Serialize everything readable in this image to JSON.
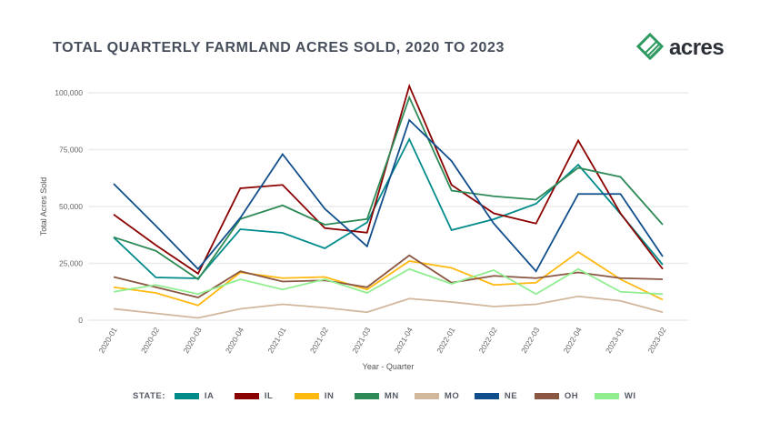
{
  "chart_data": {
    "type": "line",
    "title": "TOTAL QUARTERLY FARMLAND ACRES SOLD, 2020 TO 2023",
    "xlabel": "Year - Quarter",
    "ylabel": "Total Acres Sold",
    "ylim": [
      0,
      100000
    ],
    "yticks": [
      0,
      25000,
      50000,
      75000,
      100000
    ],
    "ytick_labels": [
      "0",
      "25,000",
      "50,000",
      "75,000",
      "100,000"
    ],
    "grid": true,
    "legend_title": "STATE:",
    "legend_position": "bottom",
    "categories": [
      "2020-01",
      "2020-02",
      "2020-03",
      "2020-04",
      "2021-01",
      "2021-02",
      "2021-03",
      "2021-04",
      "2022-01",
      "2022-02",
      "2022-03",
      "2022-04",
      "2023-01",
      "2023-02"
    ],
    "series": [
      {
        "name": "IA",
        "color": "#008b8b",
        "values": [
          36400,
          18800,
          18400,
          40000,
          38400,
          31600,
          43000,
          79600,
          39600,
          44400,
          51200,
          68400,
          46800,
          24400
        ]
      },
      {
        "name": "IL",
        "color": "#8b0000",
        "values": [
          46500,
          33000,
          20500,
          58000,
          59500,
          40500,
          38500,
          103000,
          59500,
          47000,
          42500,
          79000,
          47000,
          22500
        ]
      },
      {
        "name": "IN",
        "color": "#ffb90f",
        "values": [
          14500,
          12000,
          6500,
          21000,
          18500,
          19000,
          13500,
          26000,
          23000,
          15500,
          16500,
          30000,
          18000,
          9000
        ]
      },
      {
        "name": "MN",
        "color": "#2e8b57",
        "values": [
          36500,
          30500,
          18000,
          44500,
          50500,
          42000,
          44500,
          98000,
          57000,
          54500,
          53000,
          67000,
          63000,
          42000
        ]
      },
      {
        "name": "MO",
        "color": "#d2b79c",
        "values": [
          5000,
          3000,
          1000,
          5000,
          7000,
          5500,
          3500,
          9500,
          8000,
          6000,
          7000,
          10500,
          8500,
          3500
        ]
      },
      {
        "name": "NE",
        "color": "#104e8b",
        "values": [
          60000,
          41500,
          22500,
          45000,
          73000,
          49000,
          32500,
          88000,
          70000,
          42500,
          21500,
          55500,
          55500,
          28000
        ]
      },
      {
        "name": "OH",
        "color": "#8b5742",
        "values": [
          19000,
          14500,
          10000,
          21500,
          17000,
          17500,
          14500,
          28500,
          16500,
          19500,
          18500,
          21000,
          18500,
          18000
        ]
      },
      {
        "name": "WI",
        "color": "#90ee90",
        "values": [
          12500,
          15500,
          11500,
          18000,
          13500,
          18000,
          12000,
          22500,
          16000,
          22000,
          11500,
          22500,
          12500,
          11500
        ]
      }
    ]
  },
  "logo": {
    "text": "acres",
    "color": "#2e9a5f"
  }
}
